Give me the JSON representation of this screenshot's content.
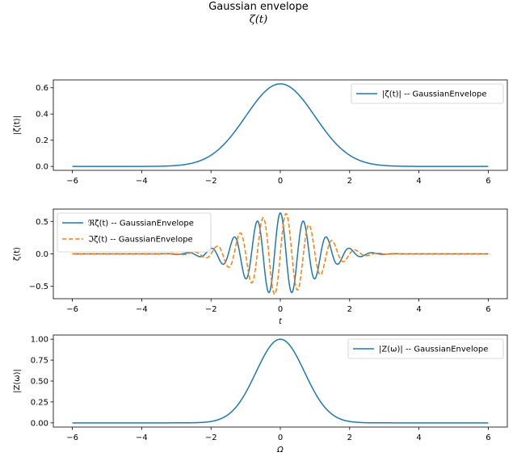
{
  "figure": {
    "title": "Gaussian envelope",
    "subtitle": "ζ(t)"
  },
  "colors": {
    "series_blue": "#1f77b4",
    "series_orange": "#ff7f0e"
  },
  "chart_data": [
    {
      "type": "line",
      "ylabel": "|ζ(t)|",
      "xlabel": "",
      "xlim": [
        -6.55,
        6.55
      ],
      "ylim": [
        -0.03,
        0.66
      ],
      "xticks": [
        -6,
        -4,
        -2,
        0,
        2,
        4,
        6
      ],
      "xtick_labels": [
        "−6",
        "−4",
        "−2",
        "0",
        "2",
        "4",
        "6"
      ],
      "yticks": [
        0.0,
        0.2,
        0.4,
        0.6
      ],
      "ytick_labels": [
        "0.0",
        "0.2",
        "0.4",
        "0.6"
      ],
      "legend_position": "upper-right",
      "grid": false,
      "series": [
        {
          "name": "|ζ(t)| -- GaussianEnvelope",
          "function": "gaussian",
          "amplitude": 0.63,
          "sigma": 1.0,
          "color": "#1f77b4",
          "style": "solid"
        }
      ]
    },
    {
      "type": "line",
      "ylabel": "ζ(t)",
      "xlabel": "t",
      "xlim": [
        -6.55,
        6.55
      ],
      "ylim": [
        -0.69,
        0.69
      ],
      "xticks": [
        -6,
        -4,
        -2,
        0,
        2,
        4,
        6
      ],
      "xtick_labels": [
        "−6",
        "−4",
        "−2",
        "0",
        "2",
        "4",
        "6"
      ],
      "yticks": [
        -0.5,
        0.0,
        0.5
      ],
      "ytick_labels": [
        "−0.5",
        "0.0",
        "0.5"
      ],
      "legend_position": "upper-left",
      "grid": false,
      "carrier_frequency_hz": 1.5,
      "series": [
        {
          "name": "ℜζ(t) -- GaussianEnvelope",
          "function": "real_part",
          "amplitude": 0.63,
          "sigma": 1.0,
          "color": "#1f77b4",
          "style": "solid"
        },
        {
          "name": "ℑζ(t) -- GaussianEnvelope",
          "function": "imag_part",
          "amplitude": 0.63,
          "sigma": 1.0,
          "color": "#ff7f0e",
          "style": "dashed"
        }
      ]
    },
    {
      "type": "line",
      "ylabel": "|Z(ω)|",
      "xlabel": "Ω",
      "xlim": [
        -6.55,
        6.55
      ],
      "ylim": [
        -0.05,
        1.05
      ],
      "xticks": [
        -6,
        -4,
        -2,
        0,
        2,
        4,
        6
      ],
      "xtick_labels": [
        "−6",
        "−4",
        "−2",
        "0",
        "2",
        "4",
        "6"
      ],
      "yticks": [
        0.0,
        0.25,
        0.5,
        0.75,
        1.0
      ],
      "ytick_labels": [
        "0.00",
        "0.25",
        "0.50",
        "0.75",
        "1.00"
      ],
      "legend_position": "upper-right",
      "grid": false,
      "series": [
        {
          "name": "|Z(ω)| -- GaussianEnvelope",
          "function": "gaussian",
          "amplitude": 1.0,
          "sigma": 0.7,
          "color": "#1f77b4",
          "style": "solid"
        }
      ]
    }
  ]
}
